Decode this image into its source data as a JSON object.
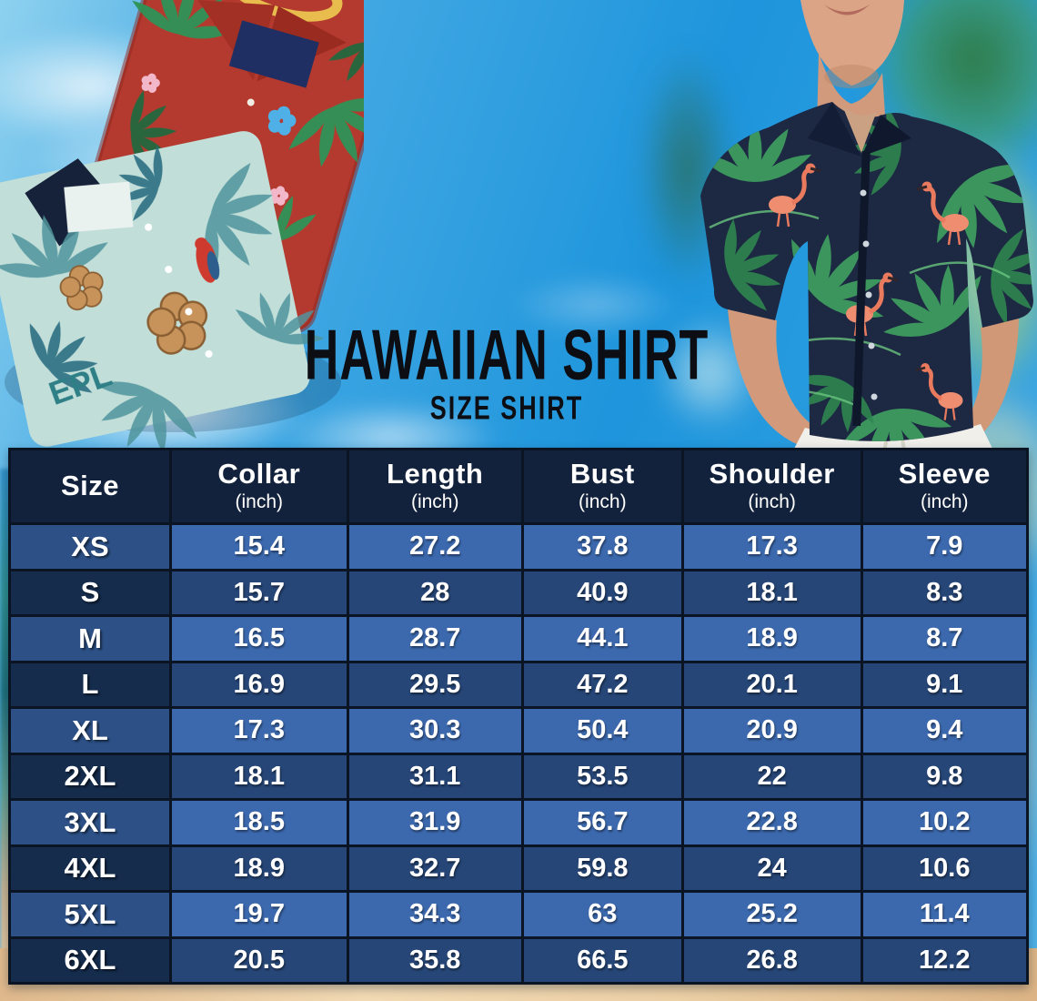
{
  "title": {
    "main": "HAWAIIAN SHIRT",
    "subtitle": "SIZE SHIRT"
  },
  "photos": {
    "left": "Two folded hawaiian shirts: red with green tropical leaves and a teal shirt with tan hibiscus flowers, parrot and EPL print",
    "right": "Man wearing a navy hawaiian shirt with pink flamingos and green palm leaves, white pants, on a blurred beach"
  },
  "chart_data": {
    "type": "table",
    "title": "HAWAIIAN SHIRT",
    "subtitle": "SIZE SHIRT",
    "columns": [
      {
        "label": "Size",
        "unit": ""
      },
      {
        "label": "Collar",
        "unit": "(inch)"
      },
      {
        "label": "Length",
        "unit": "(inch)"
      },
      {
        "label": "Bust",
        "unit": "(inch)"
      },
      {
        "label": "Shoulder",
        "unit": "(inch)"
      },
      {
        "label": "Sleeve",
        "unit": "(inch)"
      }
    ],
    "rows": [
      [
        "XS",
        "15.4",
        "27.2",
        "37.8",
        "17.3",
        "7.9"
      ],
      [
        "S",
        "15.7",
        "28",
        "40.9",
        "18.1",
        "8.3"
      ],
      [
        "M",
        "16.5",
        "28.7",
        "44.1",
        "18.9",
        "8.7"
      ],
      [
        "L",
        "16.9",
        "29.5",
        "47.2",
        "20.1",
        "9.1"
      ],
      [
        "XL",
        "17.3",
        "30.3",
        "50.4",
        "20.9",
        "9.4"
      ],
      [
        "2XL",
        "18.1",
        "31.1",
        "53.5",
        "22",
        "9.8"
      ],
      [
        "3XL",
        "18.5",
        "31.9",
        "56.7",
        "22.8",
        "10.2"
      ],
      [
        "4XL",
        "18.9",
        "32.7",
        "59.8",
        "24",
        "10.6"
      ],
      [
        "5XL",
        "19.7",
        "34.3",
        "63",
        "25.2",
        "11.4"
      ],
      [
        "6XL",
        "20.5",
        "35.8",
        "66.5",
        "26.8",
        "12.2"
      ]
    ]
  },
  "colors": {
    "header_bg": "#13223c",
    "light_row_bg": "#3c69ae",
    "light_row_size_bg": "#2d5187",
    "dark_row_bg": "#264677",
    "dark_row_size_bg": "#152c4d",
    "table_border": "#0a1422",
    "table_text": "#ffffff",
    "title_text": "#0d0e13",
    "sky_blue": "#1e95dc",
    "sand": "#ecd0a6"
  }
}
